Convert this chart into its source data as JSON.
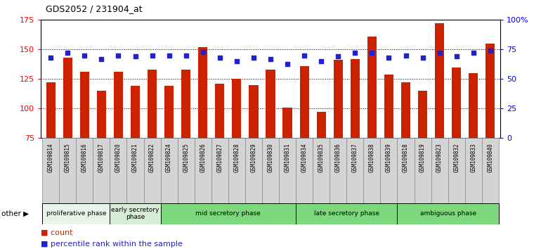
{
  "title": "GDS2052 / 231904_at",
  "samples": [
    "GSM109814",
    "GSM109815",
    "GSM109816",
    "GSM109817",
    "GSM109820",
    "GSM109821",
    "GSM109822",
    "GSM109824",
    "GSM109825",
    "GSM109826",
    "GSM109827",
    "GSM109828",
    "GSM109829",
    "GSM109830",
    "GSM109831",
    "GSM109834",
    "GSM109835",
    "GSM109836",
    "GSM109837",
    "GSM109838",
    "GSM109839",
    "GSM109818",
    "GSM109819",
    "GSM109823",
    "GSM109832",
    "GSM109833",
    "GSM109840"
  ],
  "counts": [
    122,
    143,
    131,
    115,
    131,
    119,
    133,
    119,
    133,
    152,
    121,
    125,
    120,
    133,
    101,
    136,
    97,
    141,
    142,
    161,
    129,
    122,
    115,
    172,
    135,
    130,
    155
  ],
  "percentiles": [
    68,
    72,
    70,
    67,
    70,
    69,
    70,
    70,
    70,
    73,
    68,
    65,
    68,
    67,
    63,
    70,
    65,
    69,
    72,
    72,
    68,
    70,
    68,
    72,
    69,
    72,
    74
  ],
  "phases": [
    {
      "label": "proliferative phase",
      "start": 0,
      "end": 4,
      "color": "#e8f5e8"
    },
    {
      "label": "early secretory\nphase",
      "start": 4,
      "end": 7,
      "color": "#d5ecd5"
    },
    {
      "label": "mid secretory phase",
      "start": 7,
      "end": 15,
      "color": "#7dd87d"
    },
    {
      "label": "late secretory phase",
      "start": 15,
      "end": 21,
      "color": "#7dd87d"
    },
    {
      "label": "ambiguous phase",
      "start": 21,
      "end": 27,
      "color": "#7dd87d"
    }
  ],
  "ymin": 75,
  "ymax": 175,
  "yticks_left": [
    75,
    100,
    125,
    150,
    175
  ],
  "yticks_right": [
    0,
    25,
    50,
    75,
    100
  ],
  "ytick_right_labels": [
    "0",
    "25",
    "50",
    "75",
    "100%"
  ],
  "grid_lines": [
    100,
    125,
    150
  ],
  "bar_color": "#cc2200",
  "dot_color": "#2222cc",
  "tick_bg_color": "#d4d4d4",
  "tick_border_color": "#888888"
}
